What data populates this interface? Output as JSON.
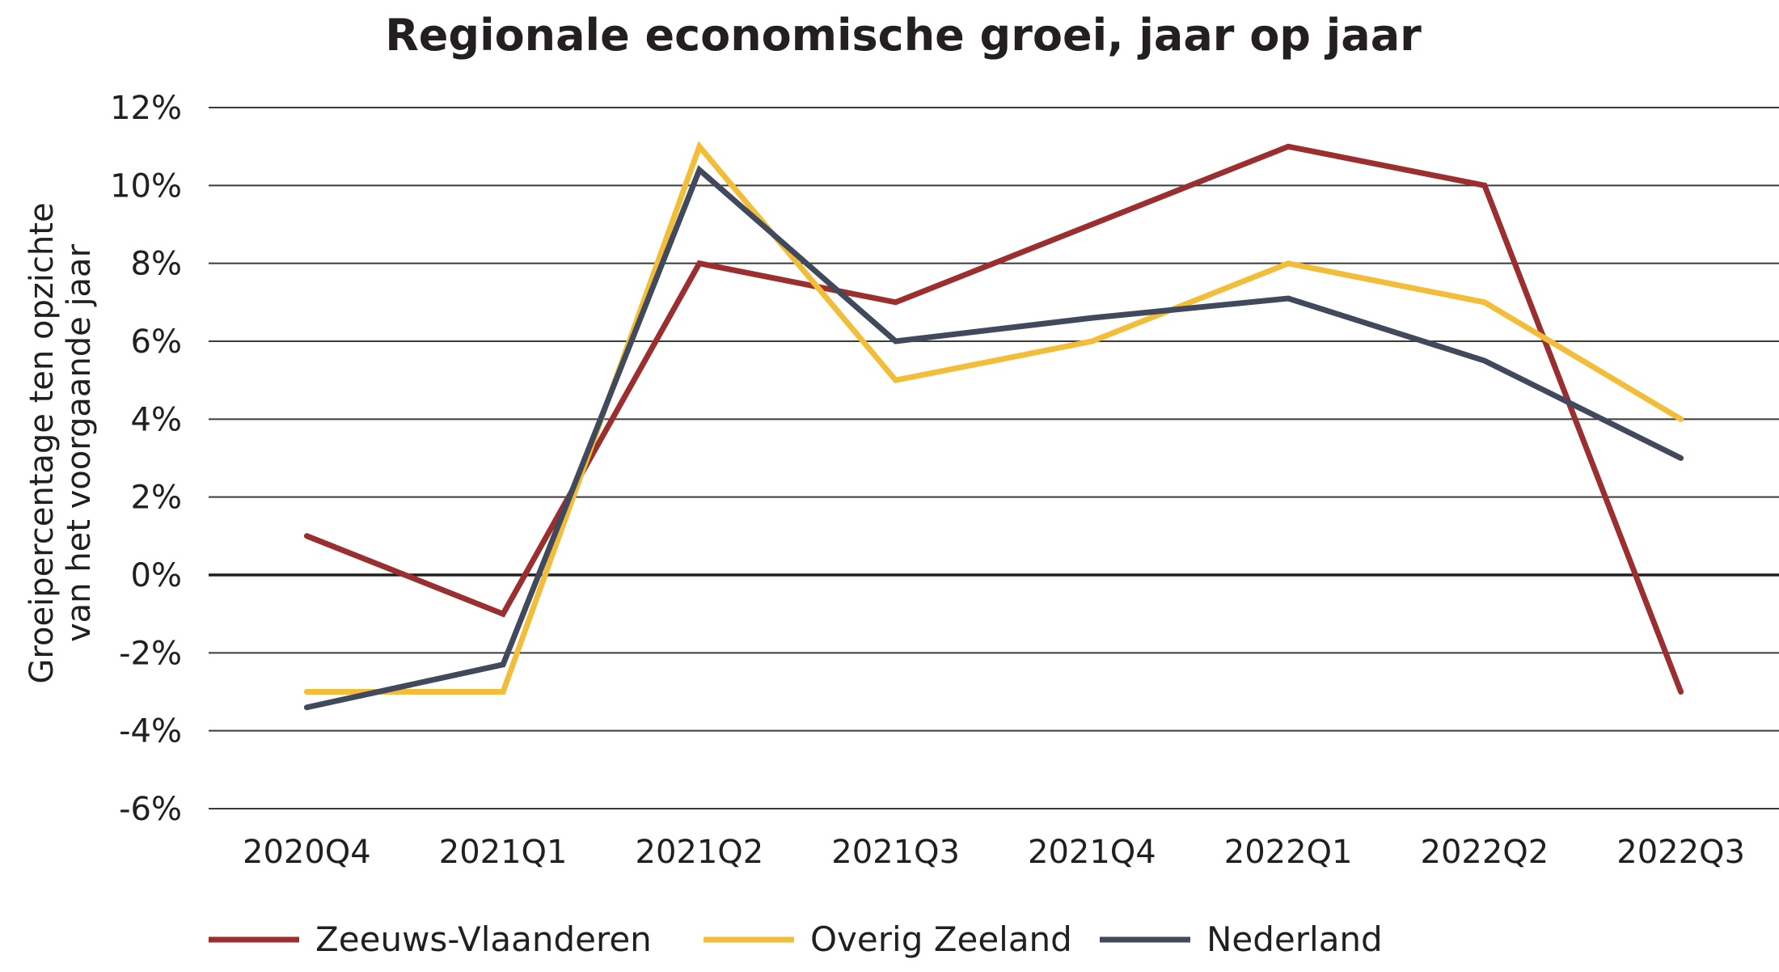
{
  "chart_data": {
    "type": "line",
    "title": "Regionale economische groei, jaar op jaar",
    "ylabel_lines": [
      "Groeipercentage ten opzichte",
      "van het voorgaande jaar"
    ],
    "xlabel": "",
    "categories": [
      "2020Q4",
      "2021Q1",
      "2021Q2",
      "2021Q3",
      "2021Q4",
      "2022Q1",
      "2022Q2",
      "2022Q3"
    ],
    "y_ticks": [
      "12%",
      "10%",
      "8%",
      "6%",
      "4%",
      "2%",
      "0%",
      "-2%",
      "-4%",
      "-6%"
    ],
    "ylim": [
      -6,
      12
    ],
    "y_tick_values": [
      12,
      10,
      8,
      6,
      4,
      2,
      0,
      -2,
      -4,
      -6
    ],
    "grid": true,
    "legend_position": "bottom",
    "series": [
      {
        "name": "Zeeuws-Vlaanderen",
        "color": "#9b2f2f",
        "values": [
          1.0,
          -1.0,
          8.0,
          7.0,
          9.0,
          11.0,
          10.0,
          -3.0
        ]
      },
      {
        "name": "Overig Zeeland",
        "color": "#f2bd38",
        "values": [
          -3.0,
          -3.0,
          11.0,
          5.0,
          6.0,
          8.0,
          7.0,
          4.0
        ]
      },
      {
        "name": "Nederland",
        "color": "#414a5c",
        "values": [
          -3.4,
          -2.3,
          10.4,
          6.0,
          6.6,
          7.1,
          5.5,
          3.0
        ]
      }
    ]
  }
}
